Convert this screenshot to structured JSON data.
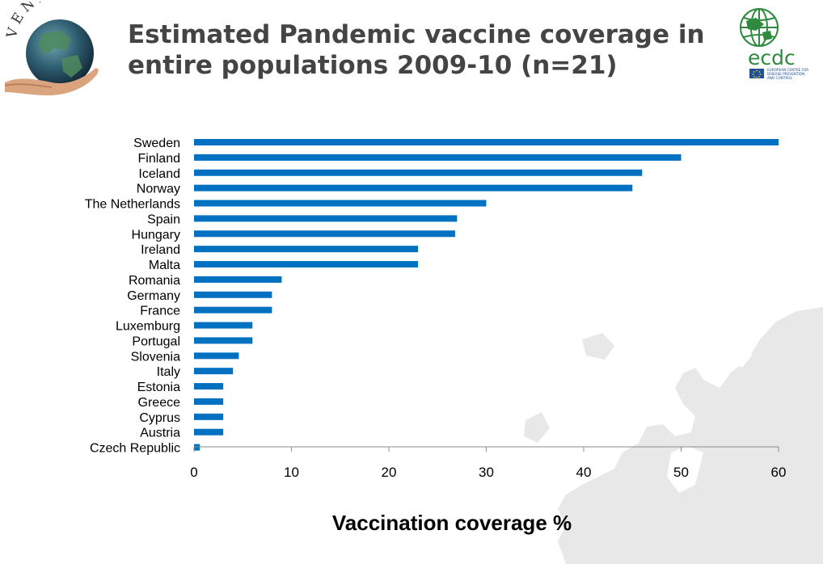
{
  "slide": {
    "title_line1": "Estimated Pandemic vaccine coverage in",
    "title_line2": "entire populations 2009-10  (n=21)"
  },
  "logos": {
    "venice_text": "VENICE",
    "ecdc_text": "ecdc",
    "ecdc_subtext": [
      "EUROPEAN CENTRE FOR",
      "DISEASE PREVENTION",
      "AND CONTROL"
    ]
  },
  "chart_data": {
    "type": "bar",
    "orientation": "horizontal",
    "title": "",
    "xlabel": "Vaccination coverage %",
    "ylabel": "",
    "xlim": [
      0,
      60
    ],
    "xticks": [
      0,
      10,
      20,
      30,
      40,
      50,
      60
    ],
    "grid": false,
    "legend": "none",
    "bar_color": "#0070c0",
    "categories": [
      "Sweden",
      "Finland",
      "Iceland",
      "Norway",
      "The Netherlands",
      "Spain",
      "Hungary",
      "Ireland",
      "Malta",
      "Romania",
      "Germany",
      "France",
      "Luxemburg",
      "Portugal",
      "Slovenia",
      "Italy",
      "Estonia",
      "Greece",
      "Cyprus",
      "Austria",
      "Czech Republic"
    ],
    "values": [
      60,
      50,
      46,
      45,
      30,
      27,
      26.8,
      23,
      23,
      9,
      8,
      8,
      6,
      6,
      4.6,
      4,
      3,
      3,
      3,
      3,
      0.6
    ]
  },
  "colors": {
    "title": "#444444",
    "bar": "#0070c0",
    "axis": "#888888",
    "map": "#e6e6e6"
  }
}
